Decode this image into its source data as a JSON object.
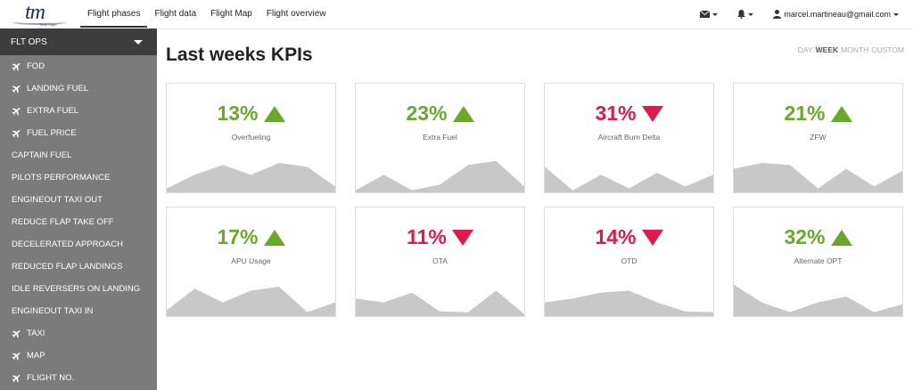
{
  "brand": {
    "logo_text": "tm",
    "tagline": "Total Flight Management"
  },
  "nav": {
    "tabs": [
      "Flight phases",
      "Flight data",
      "Flight Map",
      "Flight overview"
    ],
    "active": 0
  },
  "user": {
    "email": "marcel.martineau@gmail.com",
    "icons": [
      "envelope-icon",
      "bell-icon",
      "user-icon"
    ]
  },
  "sidebar": {
    "header": "FLT OPS",
    "items": [
      {
        "label": "FOD",
        "icon": "plane"
      },
      {
        "label": "LANDING FUEL",
        "icon": "plane"
      },
      {
        "label": "EXTRA FUEL",
        "icon": "plane"
      },
      {
        "label": "FUEL PRICE",
        "icon": "plane"
      },
      {
        "label": "CAPTAIN FUEL",
        "icon": ""
      },
      {
        "label": "PILOTS PERFORMANCE",
        "icon": ""
      },
      {
        "label": "ENGINEOUT TAXI OUT",
        "icon": ""
      },
      {
        "label": "REDUCE FLAP TAKE OFF",
        "icon": ""
      },
      {
        "label": "DECELERATED APPROACH",
        "icon": ""
      },
      {
        "label": "REDUCED FLAP LANDINGS",
        "icon": ""
      },
      {
        "label": "IDLE REVERSERS ON LANDING",
        "icon": ""
      },
      {
        "label": "ENGINEOUT TAXI IN",
        "icon": ""
      },
      {
        "label": "TAXI",
        "icon": "plane"
      },
      {
        "label": "MAP",
        "icon": "plane"
      },
      {
        "label": "FLIGHT NO.",
        "icon": "plane"
      }
    ]
  },
  "main": {
    "title": "Last weeks KPIs",
    "ranges": [
      "DAY",
      "WEEK",
      "MONTH",
      "CUSTOM"
    ],
    "selected_range": "WEEK"
  },
  "colors": {
    "up": "#6aa82a",
    "down": "#e0194e",
    "spark": "#c8c8c8"
  },
  "kpis": [
    {
      "value": "13%",
      "label": "Overfueling",
      "trend": "up",
      "spark": [
        0.1,
        0.45,
        0.7,
        0.45,
        0.75,
        0.65,
        0.15
      ]
    },
    {
      "value": "23%",
      "label": "Extra Fuel",
      "trend": "up",
      "spark": [
        0.05,
        0.45,
        0.05,
        0.2,
        0.7,
        0.8,
        0.15
      ]
    },
    {
      "value": "31%",
      "label": "Aircraft Burn Delta",
      "trend": "down",
      "spark": [
        0.65,
        0.05,
        0.45,
        0.1,
        0.5,
        0.15,
        0.45
      ]
    },
    {
      "value": "21%",
      "label": "ZFW",
      "trend": "up",
      "spark": [
        0.6,
        0.75,
        0.7,
        0.1,
        0.6,
        0.15,
        0.55
      ]
    },
    {
      "value": "17%",
      "label": "APU Usage",
      "trend": "up",
      "spark": [
        0.15,
        0.7,
        0.35,
        0.65,
        0.75,
        0.1,
        0.35
      ]
    },
    {
      "value": "11%",
      "label": "OTA",
      "trend": "down",
      "spark": [
        0.45,
        0.35,
        0.6,
        0.12,
        0.1,
        0.65,
        0.05
      ]
    },
    {
      "value": "14%",
      "label": "OTD",
      "trend": "down",
      "spark": [
        0.35,
        0.45,
        0.6,
        0.65,
        0.35,
        0.12,
        0.1
      ]
    },
    {
      "value": "32%",
      "label": "Alternate OPT",
      "trend": "up",
      "spark": [
        0.8,
        0.35,
        0.1,
        0.35,
        0.5,
        0.1,
        0.3
      ]
    }
  ]
}
